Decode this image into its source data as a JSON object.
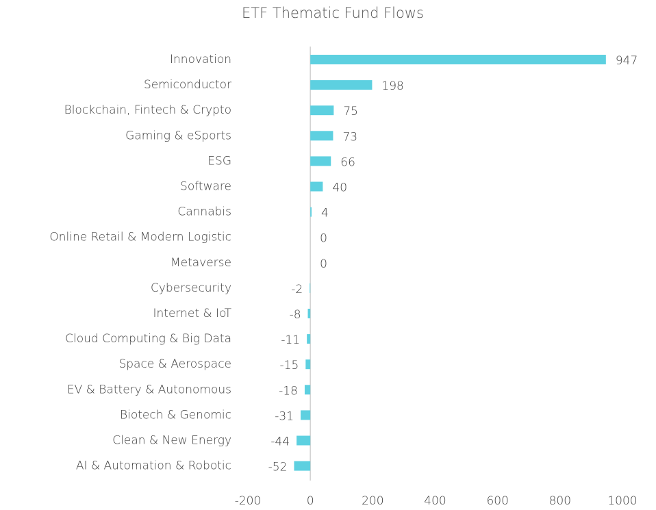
{
  "chart_data": {
    "type": "barh",
    "title": "ETF Thematic Fund Flows",
    "categories": [
      "Innovation",
      "Semiconductor",
      "Blockchain, Fintech & Crypto",
      "Gaming & eSports",
      "ESG",
      "Software",
      "Cannabis",
      "Online Retail & Modern Logistic",
      "Metaverse",
      "Cybersecurity",
      "Internet & IoT",
      "Cloud Computing & Big Data",
      "Space & Aerospace",
      "EV & Battery & Autonomous",
      "Biotech & Genomic",
      "Clean & New Energy",
      "AI & Automation & Robotic"
    ],
    "values": [
      947,
      198,
      75,
      73,
      66,
      40,
      4,
      0,
      0,
      -2,
      -8,
      -11,
      -15,
      -18,
      -31,
      -44,
      -52
    ],
    "color": "#5dd0e0",
    "xlim": [
      -200,
      1000
    ],
    "xticks": [
      -200,
      0,
      200,
      400,
      600,
      800,
      1000
    ]
  }
}
